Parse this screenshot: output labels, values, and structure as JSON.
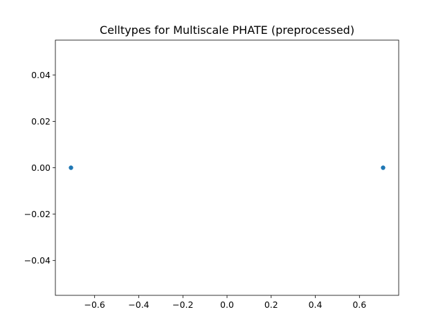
{
  "chart_data": {
    "type": "scatter",
    "title": "Celltypes for Multiscale PHATE (preprocessed)",
    "xlabel": "",
    "ylabel": "",
    "xlim": [
      -0.7778,
      0.7778
    ],
    "ylim": [
      -0.055,
      0.055
    ],
    "x_ticks": [
      -0.6,
      -0.4,
      -0.2,
      0.0,
      0.2,
      0.4,
      0.6
    ],
    "x_tick_labels": [
      "−0.6",
      "−0.4",
      "−0.2",
      "0.0",
      "0.2",
      "0.4",
      "0.6"
    ],
    "y_ticks": [
      -0.04,
      -0.02,
      0.0,
      0.02,
      0.04
    ],
    "y_tick_labels": [
      "−0.04",
      "−0.02",
      "0.00",
      "0.02",
      "0.04"
    ],
    "grid": false,
    "series": [
      {
        "color": "#1f77b4",
        "points": [
          {
            "x": -0.7071,
            "y": 0.0
          },
          {
            "x": 0.7071,
            "y": 0.0
          }
        ]
      }
    ]
  }
}
